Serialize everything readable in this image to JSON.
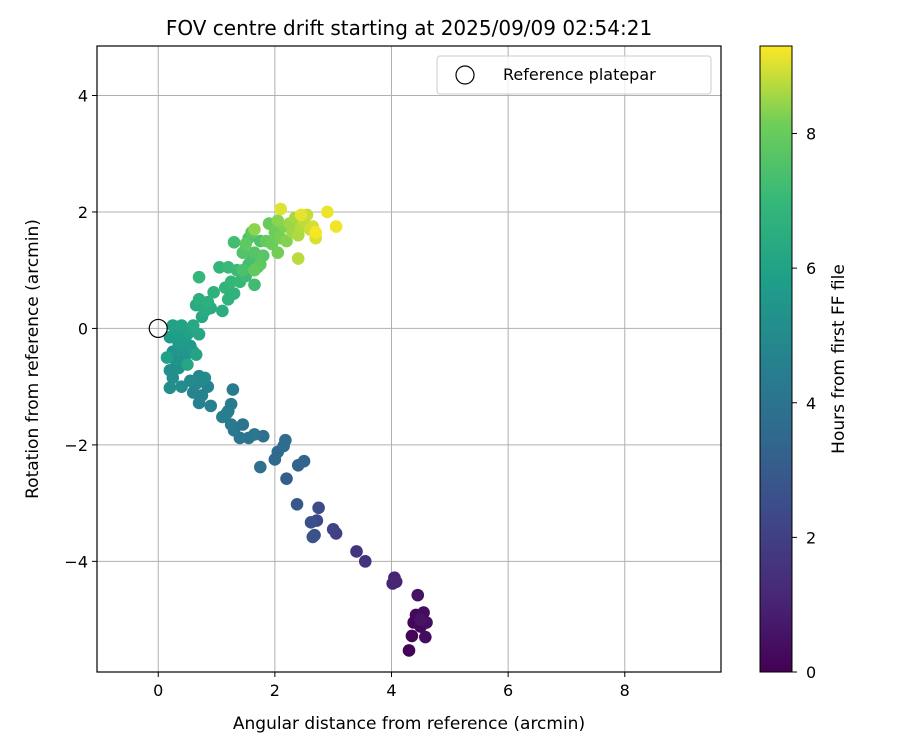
{
  "chart_data": {
    "type": "scatter",
    "title": "FOV centre drift starting at 2025/09/09 02:54:21",
    "xlabel": "Angular distance from reference (arcmin)",
    "ylabel": "Rotation from reference (arcmin)",
    "xlim": [
      -1.05,
      9.65
    ],
    "ylim": [
      -5.9,
      4.85
    ],
    "xticks": [
      0,
      2,
      4,
      6,
      8
    ],
    "yticks": [
      -4,
      -2,
      0,
      2,
      4
    ],
    "grid": true,
    "legend": {
      "location": "top-right",
      "entries": [
        "Reference platepar"
      ]
    },
    "colorbar": {
      "label": "Hours from first FF file",
      "min": 0,
      "max": 9.3,
      "ticks": [
        0,
        2,
        4,
        6,
        8
      ],
      "colormap": "viridis"
    },
    "reference_point": {
      "x": 0,
      "y": 0
    },
    "point_columns": [
      "x",
      "y",
      "hours"
    ],
    "points": [
      [
        4.3,
        -5.53,
        0.05
      ],
      [
        4.35,
        -5.28,
        0.1
      ],
      [
        4.38,
        -5.05,
        0.15
      ],
      [
        4.42,
        -4.92,
        0.2
      ],
      [
        4.5,
        -5.12,
        0.25
      ],
      [
        4.55,
        -4.88,
        0.3
      ],
      [
        4.58,
        -5.3,
        0.35
      ],
      [
        4.6,
        -5.05,
        0.4
      ],
      [
        4.45,
        -4.58,
        0.5
      ],
      [
        4.5,
        -5.0,
        0.55
      ],
      [
        4.05,
        -4.28,
        1.0
      ],
      [
        4.08,
        -4.35,
        1.05
      ],
      [
        4.02,
        -4.38,
        1.1
      ],
      [
        3.55,
        -4.0,
        1.5
      ],
      [
        3.4,
        -3.83,
        1.6
      ],
      [
        3.05,
        -3.52,
        2.0
      ],
      [
        3.0,
        -3.45,
        2.1
      ],
      [
        2.72,
        -3.3,
        2.3
      ],
      [
        2.75,
        -3.08,
        2.4
      ],
      [
        2.68,
        -3.55,
        2.5
      ],
      [
        2.62,
        -3.33,
        2.6
      ],
      [
        2.65,
        -3.58,
        2.7
      ],
      [
        2.38,
        -3.02,
        2.9
      ],
      [
        2.2,
        -2.58,
        3.1
      ],
      [
        2.4,
        -2.35,
        3.3
      ],
      [
        2.5,
        -2.28,
        3.35
      ],
      [
        2.0,
        -2.25,
        3.5
      ],
      [
        2.05,
        -2.12,
        3.55
      ],
      [
        2.18,
        -1.92,
        3.65
      ],
      [
        2.15,
        -2.02,
        3.7
      ],
      [
        1.8,
        -1.85,
        3.85
      ],
      [
        1.75,
        -2.38,
        3.9
      ],
      [
        1.55,
        -1.88,
        4.0
      ],
      [
        1.4,
        -1.88,
        4.05
      ],
      [
        1.45,
        -1.65,
        4.1
      ],
      [
        1.65,
        -1.82,
        4.15
      ],
      [
        1.3,
        -1.75,
        4.2
      ],
      [
        1.25,
        -1.65,
        4.25
      ],
      [
        1.2,
        -1.42,
        4.3
      ],
      [
        1.25,
        -1.3,
        4.35
      ],
      [
        1.28,
        -1.05,
        4.4
      ],
      [
        1.1,
        -1.52,
        4.45
      ],
      [
        1.18,
        -1.45,
        4.5
      ],
      [
        0.9,
        -1.33,
        4.55
      ],
      [
        0.7,
        -1.28,
        4.6
      ],
      [
        0.75,
        -1.15,
        4.65
      ],
      [
        0.85,
        -1.0,
        4.7
      ],
      [
        0.6,
        -1.1,
        4.75
      ],
      [
        0.65,
        -0.95,
        4.8
      ],
      [
        0.7,
        -0.82,
        4.85
      ],
      [
        0.75,
        -0.9,
        4.9
      ],
      [
        0.8,
        -0.85,
        4.95
      ],
      [
        0.55,
        -0.9,
        5.0
      ],
      [
        0.4,
        -1.0,
        5.05
      ],
      [
        0.2,
        -1.02,
        5.1
      ],
      [
        0.25,
        -0.85,
        5.15
      ],
      [
        0.2,
        -0.72,
        5.2
      ],
      [
        0.35,
        -0.68,
        5.25
      ],
      [
        0.3,
        -0.55,
        5.3
      ],
      [
        0.45,
        -0.5,
        5.35
      ],
      [
        0.5,
        -0.42,
        5.4
      ],
      [
        0.25,
        -0.4,
        5.45
      ],
      [
        0.4,
        -0.35,
        5.5
      ],
      [
        0.55,
        -0.3,
        5.55
      ],
      [
        0.6,
        -0.4,
        5.6
      ],
      [
        0.35,
        -0.25,
        5.65
      ],
      [
        0.45,
        -0.2,
        5.7
      ],
      [
        0.2,
        -0.15,
        5.75
      ],
      [
        0.3,
        -0.05,
        5.8
      ],
      [
        0.5,
        -0.1,
        5.85
      ],
      [
        0.15,
        -0.5,
        5.9
      ],
      [
        0.25,
        0.05,
        5.95
      ],
      [
        0.4,
        0.05,
        6.0
      ],
      [
        0.55,
        -0.05,
        6.05
      ],
      [
        0.65,
        -0.45,
        6.1
      ],
      [
        0.5,
        -0.62,
        6.15
      ],
      [
        0.7,
        -0.1,
        6.2
      ],
      [
        0.6,
        0.05,
        6.25
      ],
      [
        0.75,
        0.2,
        6.3
      ],
      [
        0.65,
        0.4,
        6.35
      ],
      [
        0.8,
        0.3,
        6.4
      ],
      [
        0.9,
        0.35,
        6.45
      ],
      [
        1.1,
        0.3,
        6.5
      ],
      [
        0.7,
        0.5,
        6.55
      ],
      [
        0.85,
        0.45,
        6.6
      ],
      [
        0.95,
        0.62,
        6.65
      ],
      [
        1.2,
        0.5,
        6.7
      ],
      [
        1.3,
        0.6,
        6.75
      ],
      [
        1.15,
        0.7,
        6.8
      ],
      [
        1.05,
        1.05,
        6.85
      ],
      [
        0.7,
        0.88,
        6.9
      ],
      [
        1.25,
        0.8,
        6.95
      ],
      [
        1.4,
        0.8,
        7.0
      ],
      [
        1.2,
        1.05,
        7.05
      ],
      [
        1.35,
        1.0,
        7.1
      ],
      [
        1.5,
        0.9,
        7.15
      ],
      [
        1.65,
        0.75,
        7.2
      ],
      [
        1.3,
        1.48,
        7.25
      ],
      [
        1.55,
        1.1,
        7.3
      ],
      [
        1.6,
        1.2,
        7.35
      ],
      [
        1.7,
        1.05,
        7.4
      ],
      [
        1.45,
        1.0,
        7.45
      ],
      [
        1.75,
        1.5,
        7.5
      ],
      [
        1.55,
        1.55,
        7.55
      ],
      [
        1.45,
        1.3,
        7.6
      ],
      [
        1.65,
        1.3,
        7.65
      ],
      [
        1.8,
        1.25,
        7.7
      ],
      [
        1.6,
        1.65,
        7.75
      ],
      [
        1.75,
        1.1,
        7.8
      ],
      [
        1.5,
        1.45,
        7.85
      ],
      [
        1.65,
        1.0,
        7.9
      ],
      [
        1.85,
        1.5,
        7.95
      ],
      [
        1.9,
        1.8,
        8.0
      ],
      [
        1.95,
        1.45,
        8.05
      ],
      [
        2.0,
        1.65,
        8.1
      ],
      [
        2.05,
        1.3,
        8.15
      ],
      [
        2.1,
        1.55,
        8.2
      ],
      [
        2.15,
        1.75,
        8.25
      ],
      [
        2.2,
        1.5,
        8.3
      ],
      [
        2.05,
        1.85,
        8.35
      ],
      [
        1.65,
        1.7,
        8.4
      ],
      [
        2.25,
        1.8,
        8.5
      ],
      [
        2.3,
        1.65,
        8.55
      ],
      [
        2.35,
        1.9,
        8.6
      ],
      [
        2.4,
        1.6,
        8.65
      ],
      [
        2.45,
        1.75,
        8.7
      ],
      [
        2.4,
        1.2,
        8.75
      ],
      [
        2.5,
        1.85,
        8.8
      ],
      [
        2.55,
        1.95,
        8.85
      ],
      [
        2.6,
        1.7,
        8.9
      ],
      [
        2.65,
        1.75,
        8.95
      ],
      [
        2.7,
        1.55,
        9.0
      ],
      [
        2.1,
        2.05,
        9.05
      ],
      [
        2.45,
        1.95,
        9.1
      ],
      [
        2.9,
        2.0,
        9.15
      ],
      [
        3.05,
        1.75,
        9.2
      ],
      [
        2.7,
        1.65,
        9.25
      ]
    ]
  }
}
